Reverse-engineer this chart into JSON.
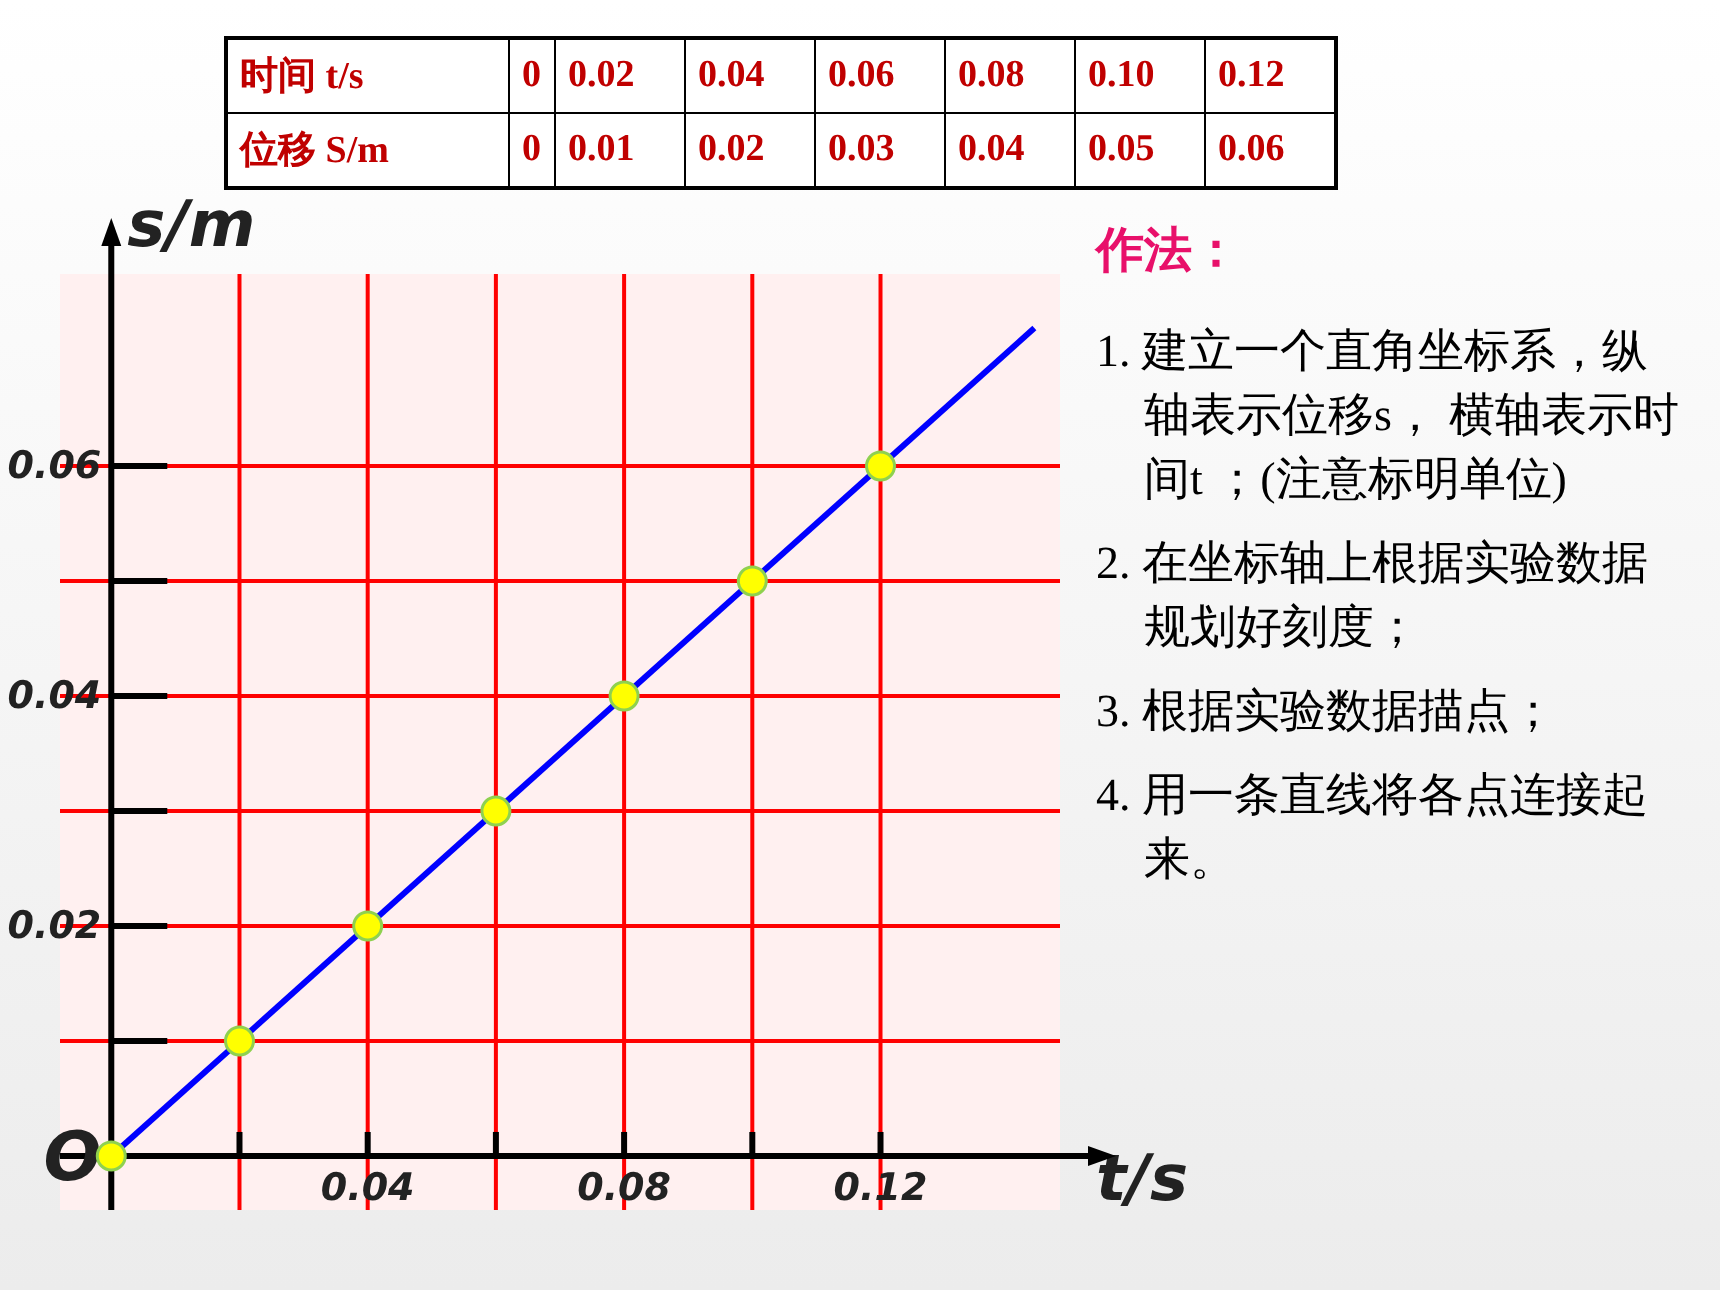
{
  "chart_data": {
    "type": "scatter",
    "xlabel": "t/s",
    "ylabel": "s/m",
    "x": [
      0,
      0.02,
      0.04,
      0.06,
      0.08,
      0.1,
      0.12
    ],
    "series": [
      {
        "type": "line",
        "color": "#0000ff",
        "x": [
          0,
          0.144
        ],
        "values": [
          0,
          0.072
        ]
      },
      {
        "color": "#ffff00",
        "marker": "circle",
        "values": [
          0,
          0.01,
          0.02,
          0.03,
          0.04,
          0.05,
          0.06
        ]
      }
    ],
    "xlim": [
      -0.008,
      0.148
    ],
    "ylim": [
      -0.0047,
      0.0767
    ],
    "xticks": [
      {
        "value": 0.02,
        "label": null
      },
      0.04,
      {
        "value": 0.06,
        "label": null
      },
      0.08,
      {
        "value": 0.1,
        "label": null
      },
      0.12
    ],
    "yticks": [
      {
        "value": 0.01,
        "label": null
      },
      0.02,
      {
        "value": 0.03,
        "label": null
      },
      0.04,
      {
        "value": 0.05,
        "label": null
      },
      0.06
    ],
    "grid": true,
    "annotations": [
      {
        "text": "O",
        "x": 0,
        "y": 0
      },
      "时间 t/s",
      "0",
      "0.02",
      "0.04",
      "0.06",
      "0.08",
      "0.10",
      "0.12",
      "位移 S/m",
      "0",
      "0.01",
      "0.02",
      "0.03",
      "0.04",
      "0.05",
      "0.06",
      "作法：",
      "1. 建立一个直角坐标系，纵轴表示位移s， 横轴表示时间t ；(注意标明单位)",
      "2. 在坐标轴上根据实验数据规划好刻度；",
      "3. 根据实验数据描点；",
      "4. 用一条直线将各点连接起来。"
    ]
  }
}
